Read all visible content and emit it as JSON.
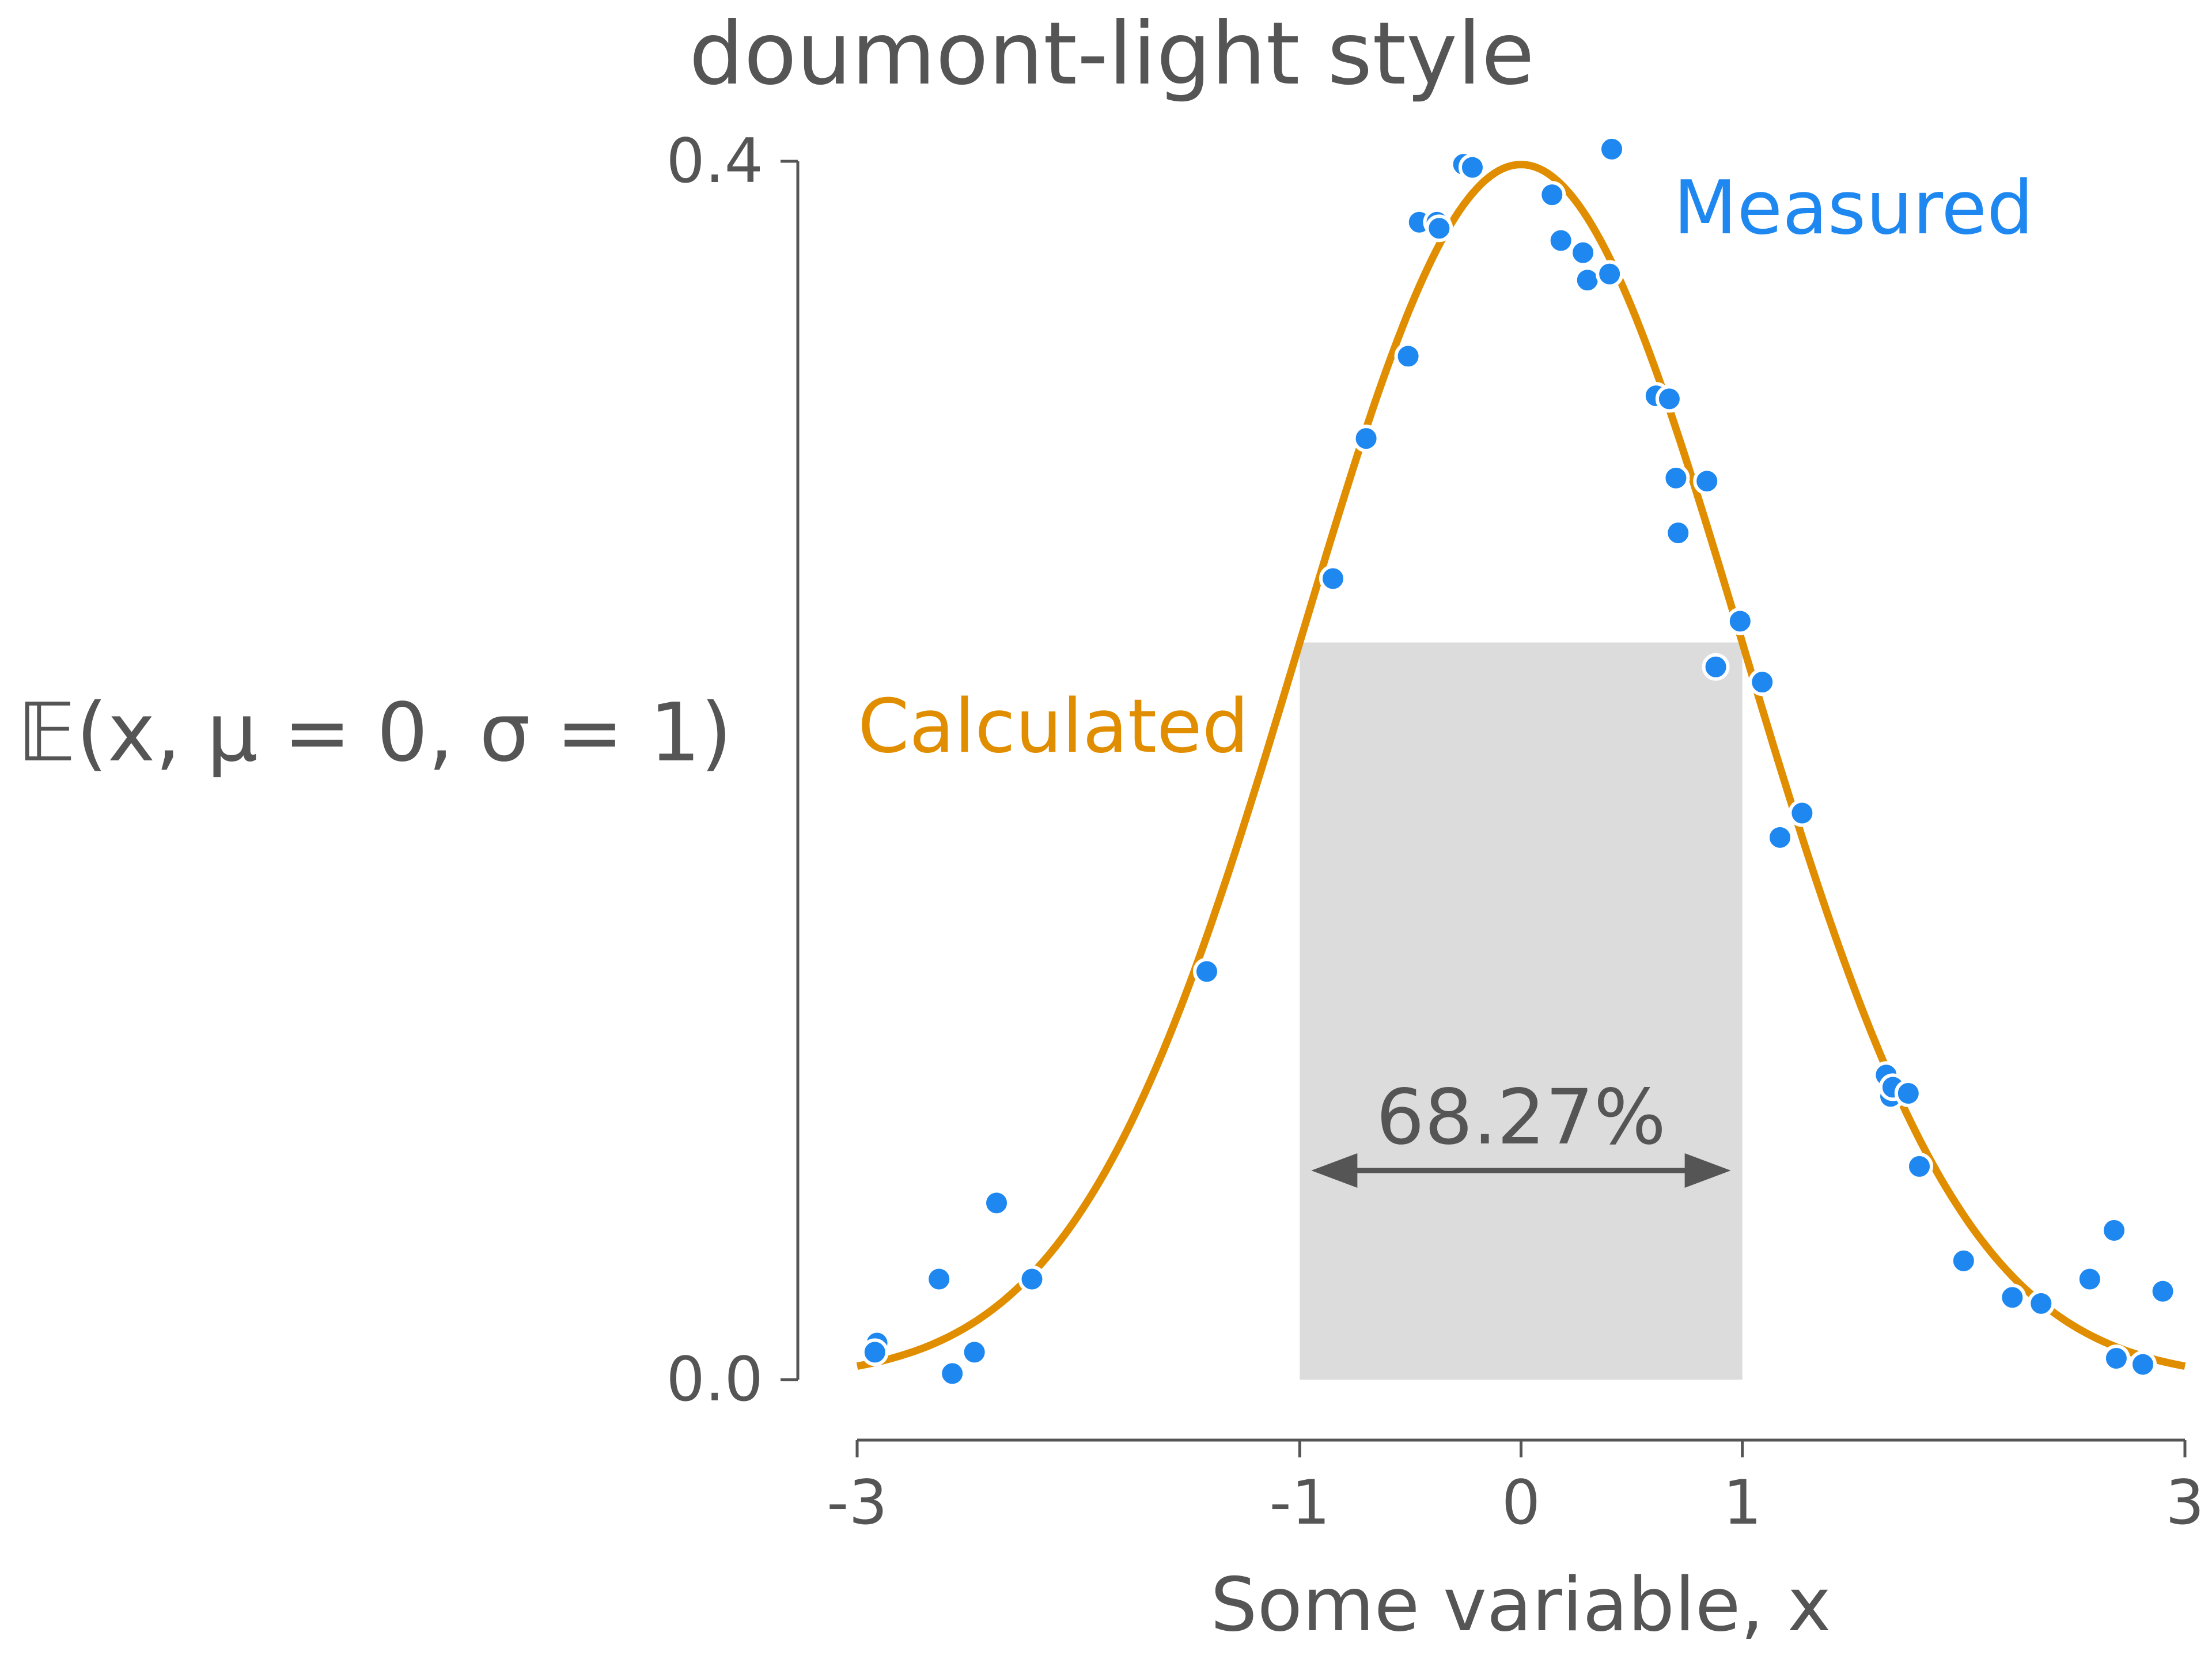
{
  "chart_data": {
    "type": "line",
    "title": "doumont-light style",
    "xlabel": "Some variable, x",
    "ylabel": "𝔼(x, μ = 0, σ = 1)",
    "xlim": [
      -3,
      3
    ],
    "ylim": [
      0,
      0.4
    ],
    "x_ticks": [
      -3,
      -1,
      0,
      1,
      3
    ],
    "x_tick_labels": [
      "-3",
      "-1",
      "0",
      "1",
      "3"
    ],
    "y_ticks": [
      0,
      0.4
    ],
    "y_tick_labels": [
      "0.0",
      "0.4"
    ],
    "grid": false,
    "shaded_region": {
      "x": [
        -1,
        1
      ],
      "label": "68.27%"
    },
    "series": [
      {
        "name": "Calculated",
        "kind": "line",
        "function": "normal pdf, mu=0, sigma=1",
        "color": "#E08E00",
        "x": [
          -3.0,
          -2.75,
          -2.5,
          -2.25,
          -2.0,
          -1.75,
          -1.5,
          -1.25,
          -1.0,
          -0.75,
          -0.5,
          -0.25,
          0.0,
          0.25,
          0.5,
          0.75,
          1.0,
          1.25,
          1.5,
          1.75,
          2.0,
          2.25,
          2.5,
          2.75,
          3.0
        ],
        "y": [
          0.0044,
          0.0091,
          0.0175,
          0.0317,
          0.054,
          0.0863,
          0.1295,
          0.1826,
          0.242,
          0.3011,
          0.3521,
          0.3867,
          0.3989,
          0.3867,
          0.3521,
          0.3011,
          0.242,
          0.1826,
          0.1295,
          0.0863,
          0.054,
          0.0317,
          0.0175,
          0.0091,
          0.0044
        ]
      },
      {
        "name": "Measured",
        "kind": "scatter",
        "color": "#1E88F0",
        "points": [
          [
            -2.91,
            0.012
          ],
          [
            -2.92,
            0.009
          ],
          [
            -2.63,
            0.033
          ],
          [
            -2.57,
            0.002
          ],
          [
            -2.47,
            0.009
          ],
          [
            -2.37,
            0.058
          ],
          [
            -2.21,
            0.033
          ],
          [
            -1.42,
            0.134
          ],
          [
            -0.85,
            0.263
          ],
          [
            -0.7,
            0.309
          ],
          [
            -0.51,
            0.336
          ],
          [
            -0.46,
            0.38
          ],
          [
            -0.38,
            0.38
          ],
          [
            -0.37,
            0.378
          ],
          [
            -0.26,
            0.399
          ],
          [
            -0.22,
            0.398
          ],
          [
            0.14,
            0.389
          ],
          [
            0.18,
            0.374
          ],
          [
            0.28,
            0.37
          ],
          [
            0.3,
            0.361
          ],
          [
            0.4,
            0.363
          ],
          [
            0.41,
            0.404
          ],
          [
            0.61,
            0.323
          ],
          [
            0.67,
            0.322
          ],
          [
            0.7,
            0.296
          ],
          [
            0.71,
            0.278
          ],
          [
            0.84,
            0.295
          ],
          [
            0.88,
            0.234
          ],
          [
            0.99,
            0.249
          ],
          [
            1.09,
            0.229
          ],
          [
            1.17,
            0.178
          ],
          [
            1.27,
            0.186
          ],
          [
            1.65,
            0.1
          ],
          [
            1.67,
            0.093
          ],
          [
            1.68,
            0.096
          ],
          [
            1.75,
            0.094
          ],
          [
            1.8,
            0.07
          ],
          [
            2.0,
            0.039
          ],
          [
            2.22,
            0.027
          ],
          [
            2.35,
            0.025
          ],
          [
            2.57,
            0.033
          ],
          [
            2.68,
            0.049
          ],
          [
            2.69,
            0.007
          ],
          [
            2.81,
            0.005
          ],
          [
            2.9,
            0.029
          ]
        ]
      }
    ]
  }
}
